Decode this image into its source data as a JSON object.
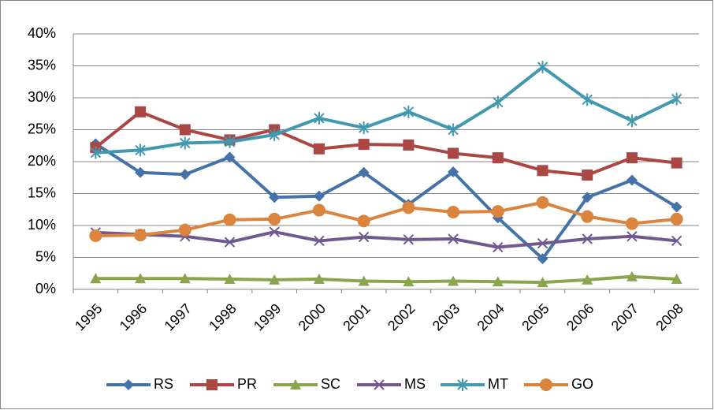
{
  "chart_data": {
    "type": "line",
    "categories": [
      "1995",
      "1996",
      "1997",
      "1998",
      "1999",
      "2000",
      "2001",
      "2002",
      "2003",
      "2004",
      "2005",
      "2006",
      "2007",
      "2008"
    ],
    "series": [
      {
        "name": "RS",
        "color": "#4572a7",
        "marker": "diamond",
        "values": [
          22.8,
          18.3,
          18.0,
          20.7,
          14.4,
          14.6,
          18.3,
          13.3,
          18.4,
          11.2,
          4.8,
          14.4,
          17.1,
          12.9
        ]
      },
      {
        "name": "PR",
        "color": "#aa4643",
        "marker": "square",
        "values": [
          22.2,
          27.8,
          25.0,
          23.4,
          25.0,
          22.0,
          22.7,
          22.6,
          21.3,
          20.6,
          18.6,
          17.9,
          20.6,
          19.8
        ]
      },
      {
        "name": "SC",
        "color": "#89a54e",
        "marker": "triangle",
        "values": [
          1.7,
          1.7,
          1.7,
          1.6,
          1.5,
          1.6,
          1.3,
          1.2,
          1.3,
          1.2,
          1.1,
          1.5,
          2.0,
          1.6
        ]
      },
      {
        "name": "MS",
        "color": "#71588f",
        "marker": "x",
        "values": [
          8.9,
          8.6,
          8.3,
          7.4,
          9.0,
          7.6,
          8.2,
          7.8,
          7.9,
          6.6,
          7.2,
          7.9,
          8.3,
          7.6
        ]
      },
      {
        "name": "MT",
        "color": "#4198af",
        "marker": "star",
        "values": [
          21.4,
          21.8,
          22.9,
          23.1,
          24.2,
          26.8,
          25.3,
          27.8,
          25.0,
          29.3,
          34.8,
          29.7,
          26.4,
          29.8
        ]
      },
      {
        "name": "GO",
        "color": "#db843d",
        "marker": "circle",
        "values": [
          8.4,
          8.5,
          9.3,
          10.9,
          11.0,
          12.4,
          10.7,
          12.8,
          12.1,
          12.2,
          13.6,
          11.4,
          10.3,
          11.0
        ]
      }
    ],
    "ylim": [
      0,
      40
    ],
    "yticks": [
      {
        "value": 0,
        "label": "0%"
      },
      {
        "value": 5,
        "label": "5%"
      },
      {
        "value": 10,
        "label": "10%"
      },
      {
        "value": 15,
        "label": "15%"
      },
      {
        "value": 20,
        "label": "20%"
      },
      {
        "value": 25,
        "label": "25%"
      },
      {
        "value": 30,
        "label": "30%"
      },
      {
        "value": 35,
        "label": "35%"
      },
      {
        "value": 40,
        "label": "40%"
      }
    ],
    "grid": true,
    "legend": "bottom"
  }
}
